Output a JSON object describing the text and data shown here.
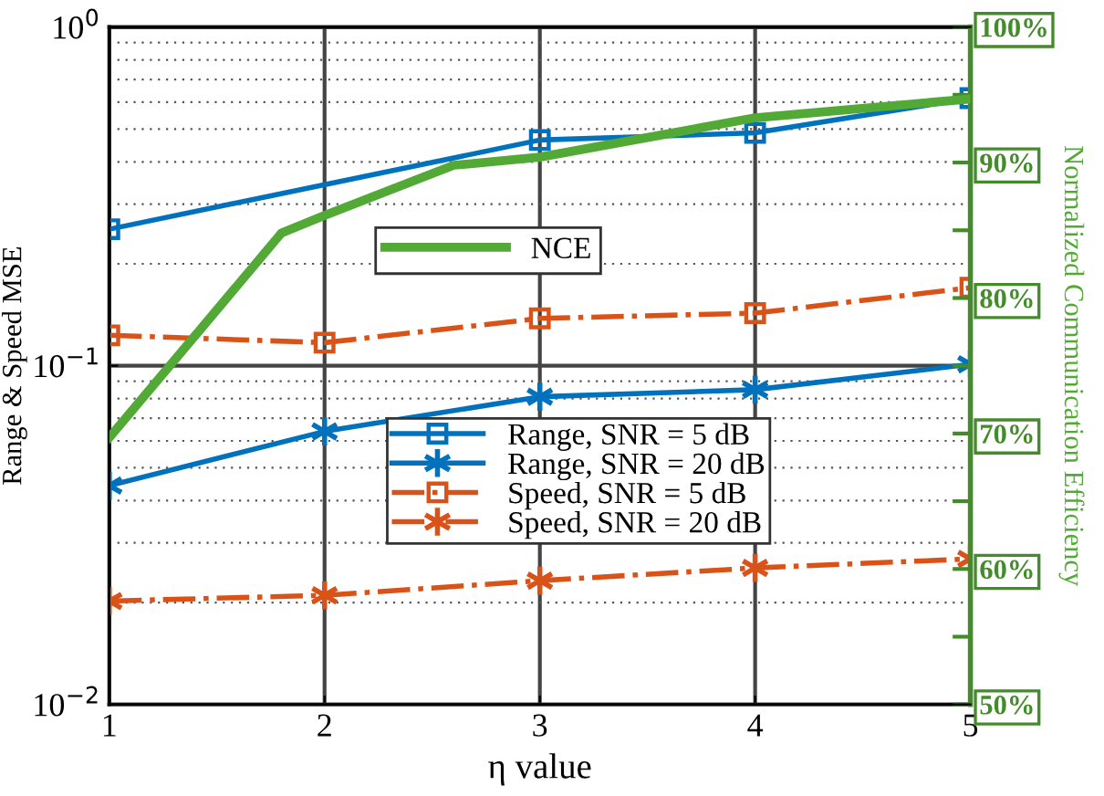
{
  "chart_data": {
    "type": "line",
    "xlabel": "η value",
    "ylabel": "Range & Speed MSE",
    "y2label": "Normalized Communication Efficiency",
    "x": [
      1,
      2,
      3,
      4,
      5
    ],
    "xlim": [
      1,
      5
    ],
    "xticks": [
      1,
      2,
      3,
      4,
      5
    ],
    "log": "y",
    "ylim": [
      0.01,
      1
    ],
    "yticks": [
      {
        "value": 0.01,
        "label": "10$^{−2}$"
      },
      {
        "value": 0.1,
        "label": "10$^{−1}$"
      },
      {
        "value": 1,
        "label": "10$^{0}$"
      }
    ],
    "y2lim": [
      50,
      100
    ],
    "y2ticks": [
      {
        "value": 50,
        "label": "50%"
      },
      {
        "value": 55,
        "label": null
      },
      {
        "value": 60,
        "label": "60%"
      },
      {
        "value": 65,
        "label": null
      },
      {
        "value": 70,
        "label": "70%"
      },
      {
        "value": 75,
        "label": null
      },
      {
        "value": 80,
        "label": "80%"
      },
      {
        "value": 85,
        "label": null
      },
      {
        "value": 90,
        "label": "90%"
      },
      {
        "value": 95,
        "label": null
      },
      {
        "value": 100,
        "label": "100%"
      }
    ],
    "grid": true,
    "legend": "center",
    "series": [
      {
        "name": "Range, SNR = 5 dB",
        "color": "#0072bd",
        "x": [
          1,
          3,
          4,
          5
        ],
        "values": [
          0.253,
          0.464,
          0.487,
          0.617
        ],
        "marker": "square",
        "line_style": "solid"
      },
      {
        "name": "Range, SNR = 20 dB",
        "color": "#0072bd",
        "values": [
          0.0443,
          0.064,
          0.081,
          0.085,
          0.101
        ],
        "marker": "cross",
        "line_style": "solid"
      },
      {
        "name": "Speed, SNR = 5 dB",
        "color": "#d95319",
        "values": [
          0.123,
          0.117,
          0.138,
          0.143,
          0.17
        ],
        "marker": "square",
        "line_style": "dashdot"
      },
      {
        "name": "Speed, SNR = 20 dB",
        "color": "#d95319",
        "values": [
          0.0202,
          0.021,
          0.0232,
          0.0253,
          0.0269
        ],
        "marker": "cross",
        "line_style": "dashdot"
      },
      {
        "name": "NCE",
        "color": "#52a935",
        "axis": "y2",
        "x": [
          1,
          1.8,
          2,
          2.6,
          3,
          4,
          5
        ],
        "values": [
          69.7,
          84.8,
          86.1,
          89.8,
          90.4,
          93.3,
          94.7
        ],
        "marker": "none",
        "line_style": "solid"
      }
    ]
  }
}
